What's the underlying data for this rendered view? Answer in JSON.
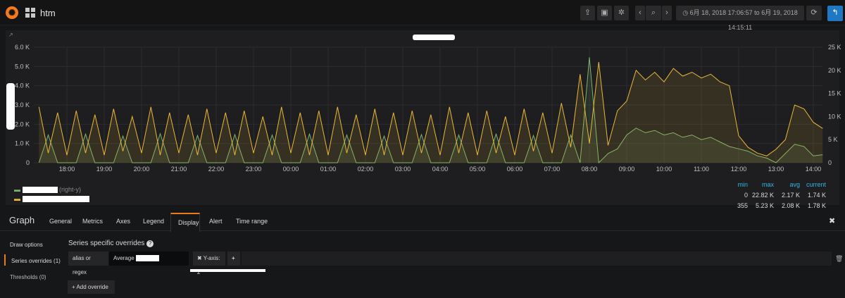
{
  "navbar": {
    "dashboard_title": "htm",
    "time_range": "6月 18, 2018 17:06:57 to 6月 19, 2018 14:15:11",
    "icons": [
      "grafana-logo",
      "dashboards-grid-icon",
      "share-icon",
      "save-icon",
      "settings-icon",
      "chevron-left-icon",
      "zoom-out-icon",
      "chevron-right-icon",
      "clock-icon",
      "refresh-icon",
      "back-icon"
    ]
  },
  "colors": {
    "green": "#7eb26d",
    "yellow": "#eab839",
    "accent": "#eb7b18",
    "back_button": "#1f78c1",
    "legend_header": "#33b5e5"
  },
  "chart_data": {
    "type": "line",
    "fill": true,
    "grid": true,
    "x_ticks": [
      "18:00",
      "19:00",
      "20:00",
      "21:00",
      "22:00",
      "23:00",
      "00:00",
      "01:00",
      "02:00",
      "03:00",
      "04:00",
      "05:00",
      "06:00",
      "07:00",
      "08:00",
      "09:00",
      "10:00",
      "11:00",
      "12:00",
      "13:00",
      "14:00"
    ],
    "y_left": {
      "ticks": [
        "0",
        "1.0 K",
        "2.0 K",
        "3.0 K",
        "4.0 K",
        "5.0 K",
        "6.0 K"
      ],
      "range": [
        0,
        6000
      ]
    },
    "y_right": {
      "ticks": [
        "0",
        "5 K",
        "10 K",
        "15 K",
        "20 K",
        "25 K"
      ],
      "range": [
        0,
        25000
      ]
    },
    "series": [
      {
        "axis": "right",
        "label_suffix": "(right-y)",
        "color": "#7eb26d",
        "points": [
          [
            "17:15",
            0
          ],
          [
            "17:30",
            6000
          ],
          [
            "17:45",
            0
          ],
          [
            "18:00",
            0
          ],
          [
            "18:15",
            0
          ],
          [
            "18:30",
            6200
          ],
          [
            "18:45",
            0
          ],
          [
            "19:00",
            0
          ],
          [
            "19:15",
            0
          ],
          [
            "19:30",
            5800
          ],
          [
            "19:45",
            0
          ],
          [
            "20:00",
            0
          ],
          [
            "20:15",
            0
          ],
          [
            "20:30",
            6300
          ],
          [
            "20:45",
            0
          ],
          [
            "21:00",
            0
          ],
          [
            "21:15",
            0
          ],
          [
            "21:30",
            5900
          ],
          [
            "21:45",
            0
          ],
          [
            "22:00",
            0
          ],
          [
            "22:15",
            0
          ],
          [
            "22:30",
            6100
          ],
          [
            "22:45",
            0
          ],
          [
            "23:00",
            0
          ],
          [
            "23:15",
            0
          ],
          [
            "23:30",
            6000
          ],
          [
            "23:45",
            0
          ],
          [
            "00:00",
            0
          ],
          [
            "00:15",
            0
          ],
          [
            "00:30",
            6200
          ],
          [
            "00:45",
            0
          ],
          [
            "01:00",
            0
          ],
          [
            "01:15",
            0
          ],
          [
            "01:30",
            6000
          ],
          [
            "01:45",
            0
          ],
          [
            "02:00",
            0
          ],
          [
            "02:15",
            0
          ],
          [
            "02:30",
            5800
          ],
          [
            "02:45",
            0
          ],
          [
            "03:00",
            0
          ],
          [
            "03:15",
            0
          ],
          [
            "03:30",
            6100
          ],
          [
            "03:45",
            0
          ],
          [
            "04:00",
            0
          ],
          [
            "04:15",
            0
          ],
          [
            "04:30",
            6000
          ],
          [
            "04:45",
            0
          ],
          [
            "05:00",
            0
          ],
          [
            "05:15",
            0
          ],
          [
            "05:30",
            6200
          ],
          [
            "05:45",
            0
          ],
          [
            "06:00",
            0
          ],
          [
            "06:15",
            0
          ],
          [
            "06:30",
            5900
          ],
          [
            "06:45",
            0
          ],
          [
            "07:00",
            0
          ],
          [
            "07:15",
            0
          ],
          [
            "07:30",
            6000
          ],
          [
            "07:45",
            0
          ],
          [
            "08:00",
            22820
          ],
          [
            "08:15",
            0
          ],
          [
            "08:30",
            2000
          ],
          [
            "08:45",
            3000
          ],
          [
            "09:00",
            6000
          ],
          [
            "09:15",
            7500
          ],
          [
            "09:30",
            6500
          ],
          [
            "09:45",
            7000
          ],
          [
            "10:00",
            6000
          ],
          [
            "10:15",
            6500
          ],
          [
            "10:30",
            5500
          ],
          [
            "10:45",
            6000
          ],
          [
            "11:00",
            5000
          ],
          [
            "11:15",
            5500
          ],
          [
            "11:30",
            4500
          ],
          [
            "11:45",
            3500
          ],
          [
            "12:00",
            3000
          ],
          [
            "12:15",
            2500
          ],
          [
            "12:30",
            1500
          ],
          [
            "12:45",
            1000
          ],
          [
            "13:00",
            0
          ],
          [
            "13:15",
            2000
          ],
          [
            "13:30",
            4000
          ],
          [
            "13:45",
            3500
          ],
          [
            "14:00",
            1500
          ],
          [
            "14:15",
            1740
          ]
        ]
      },
      {
        "axis": "left",
        "color": "#eab839",
        "points": [
          [
            "17:15",
            2900
          ],
          [
            "17:30",
            500
          ],
          [
            "17:45",
            2600
          ],
          [
            "18:00",
            400
          ],
          [
            "18:15",
            2700
          ],
          [
            "18:30",
            500
          ],
          [
            "18:45",
            2500
          ],
          [
            "19:00",
            400
          ],
          [
            "19:15",
            2800
          ],
          [
            "19:30",
            600
          ],
          [
            "19:45",
            2400
          ],
          [
            "20:00",
            500
          ],
          [
            "20:15",
            2900
          ],
          [
            "20:30",
            400
          ],
          [
            "20:45",
            2600
          ],
          [
            "21:00",
            500
          ],
          [
            "21:15",
            2500
          ],
          [
            "21:30",
            400
          ],
          [
            "21:45",
            2800
          ],
          [
            "22:00",
            500
          ],
          [
            "22:15",
            2600
          ],
          [
            "22:30",
            400
          ],
          [
            "22:45",
            2700
          ],
          [
            "23:00",
            500
          ],
          [
            "23:15",
            2400
          ],
          [
            "23:30",
            400
          ],
          [
            "23:45",
            2900
          ],
          [
            "00:00",
            500
          ],
          [
            "00:15",
            2600
          ],
          [
            "00:30",
            400
          ],
          [
            "00:45",
            2700
          ],
          [
            "01:00",
            400
          ],
          [
            "01:15",
            2900
          ],
          [
            "01:30",
            500
          ],
          [
            "01:45",
            2500
          ],
          [
            "02:00",
            400
          ],
          [
            "02:15",
            2800
          ],
          [
            "02:30",
            400
          ],
          [
            "02:45",
            2600
          ],
          [
            "03:00",
            400
          ],
          [
            "03:15",
            2700
          ],
          [
            "03:30",
            500
          ],
          [
            "03:45",
            2500
          ],
          [
            "04:00",
            400
          ],
          [
            "04:15",
            2900
          ],
          [
            "04:30",
            500
          ],
          [
            "04:45",
            2600
          ],
          [
            "05:00",
            400
          ],
          [
            "05:15",
            2700
          ],
          [
            "05:30",
            500
          ],
          [
            "05:45",
            2400
          ],
          [
            "06:00",
            400
          ],
          [
            "06:15",
            2800
          ],
          [
            "06:30",
            600
          ],
          [
            "06:45",
            2600
          ],
          [
            "07:00",
            500
          ],
          [
            "07:15",
            3100
          ],
          [
            "07:30",
            800
          ],
          [
            "07:45",
            4600
          ],
          [
            "08:00",
            1000
          ],
          [
            "08:15",
            5230
          ],
          [
            "08:30",
            900
          ],
          [
            "08:45",
            2700
          ],
          [
            "09:00",
            3200
          ],
          [
            "09:15",
            4800
          ],
          [
            "09:30",
            4300
          ],
          [
            "09:45",
            4700
          ],
          [
            "10:00",
            4200
          ],
          [
            "10:15",
            4900
          ],
          [
            "10:30",
            4500
          ],
          [
            "10:45",
            4700
          ],
          [
            "11:00",
            4400
          ],
          [
            "11:15",
            4600
          ],
          [
            "11:30",
            4200
          ],
          [
            "11:45",
            4000
          ],
          [
            "12:00",
            1400
          ],
          [
            "12:15",
            800
          ],
          [
            "12:30",
            500
          ],
          [
            "12:45",
            355
          ],
          [
            "13:00",
            700
          ],
          [
            "13:15",
            1200
          ],
          [
            "13:30",
            3000
          ],
          [
            "13:45",
            2800
          ],
          [
            "14:00",
            2100
          ],
          [
            "14:15",
            1780
          ]
        ]
      }
    ]
  },
  "legend": {
    "headers": [
      "min",
      "max",
      "avg",
      "current"
    ],
    "rows": [
      {
        "suffix": "(right-y)",
        "min": "0",
        "max": "22.82 K",
        "avg": "2.17 K",
        "current": "1.74 K"
      },
      {
        "suffix": "",
        "min": "355",
        "max": "5.23 K",
        "avg": "2.08 K",
        "current": "1.78 K"
      }
    ]
  },
  "editor": {
    "title": "Graph",
    "tabs": [
      "General",
      "Metrics",
      "Axes",
      "Legend",
      "Display",
      "Alert",
      "Time range"
    ],
    "active_tab": "Display",
    "side": [
      "Draw options",
      "Series overrides (1)",
      "Thresholds (0)"
    ],
    "section_title": "Series specific overrides",
    "alias_label": "alias or regex",
    "alias_value": "Average",
    "override_chip": "✖ Y-axis: 2",
    "add_override": "+ Add override"
  }
}
